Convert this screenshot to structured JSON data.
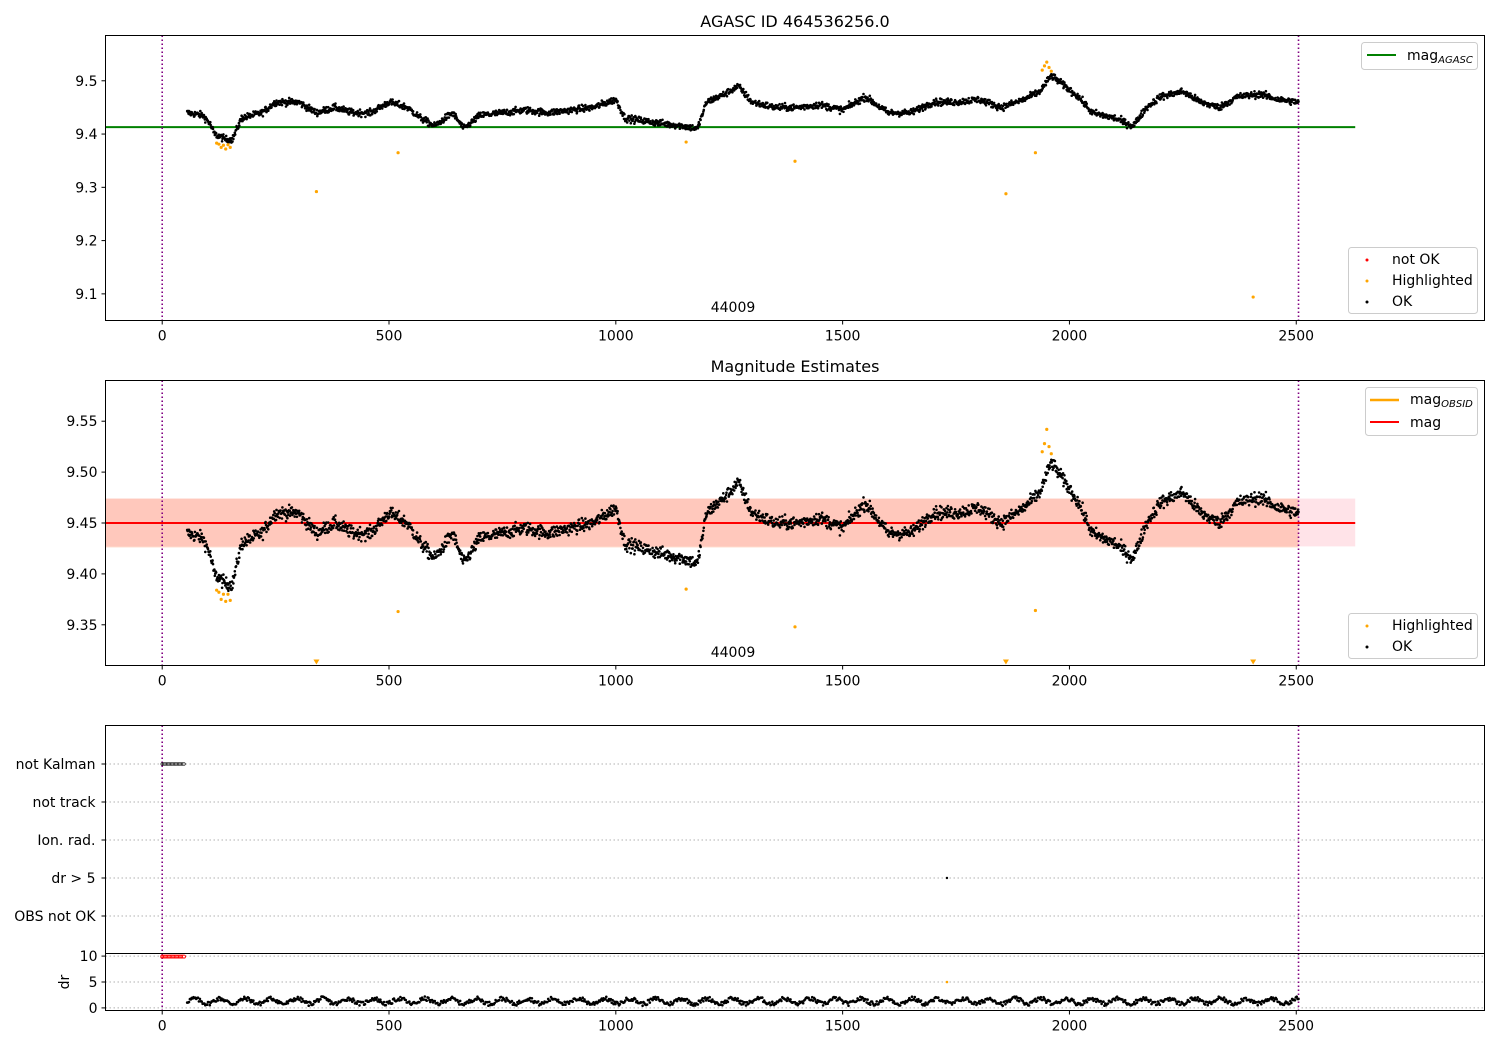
{
  "colors": {
    "ok": "#000000",
    "highlighted": "#ffa500",
    "not_ok": "#ff0000",
    "mag_agasc_line": "#008000",
    "mag_obsid_line": "#ffa500",
    "mag_line": "#ff0000",
    "band_outer": "#ffc0cb",
    "band_inner": "#ffa07a",
    "vline": "#800080",
    "gridline": "#b0b0b0"
  },
  "chart_data": [
    {
      "type": "scatter",
      "title": "AGASC ID 464536256.0",
      "xlim": [
        -125,
        2915
      ],
      "ylim": [
        9.05,
        9.585
      ],
      "xticks": [
        "0",
        "500",
        "1000",
        "1500",
        "2000",
        "2500"
      ],
      "yticks": [
        "9.1",
        "9.2",
        "9.3",
        "9.4",
        "9.5"
      ],
      "obsid_label": "44009",
      "obsid_boundaries": [
        0,
        2505
      ],
      "lines": [
        {
          "name": "mag",
          "name_sub": "AGASC",
          "y": 9.413,
          "x_range": [
            -125,
            2630
          ]
        }
      ],
      "legend_lines": [
        {
          "name": "mag",
          "name_sub": "AGASC"
        }
      ],
      "legend_points": [
        "not OK",
        "Highlighted",
        "OK"
      ],
      "series": [
        {
          "name": "OK",
          "description": "dense time series x=55..2505, y range 9.39..9.51 following the mag estimate trend",
          "count": 2450
        },
        {
          "name": "Highlighted",
          "x": [
            120,
            125,
            130,
            135,
            140,
            145,
            150,
            340,
            520,
            1155,
            1395,
            1860,
            1925,
            1940,
            1945,
            1950,
            1955,
            1960,
            2405
          ],
          "y": [
            9.383,
            9.381,
            9.375,
            9.379,
            9.372,
            9.38,
            9.375,
            9.292,
            9.365,
            9.385,
            9.349,
            9.288,
            9.365,
            9.52,
            9.528,
            9.535,
            9.525,
            9.518,
            9.094
          ]
        },
        {
          "name": "not OK",
          "x": [],
          "y": []
        }
      ]
    },
    {
      "type": "scatter",
      "title": "Magnitude Estimates",
      "xlim": [
        -125,
        2915
      ],
      "ylim": [
        9.31,
        9.59
      ],
      "xticks": [
        "0",
        "500",
        "1000",
        "1500",
        "2000",
        "2500"
      ],
      "yticks": [
        "9.35",
        "9.40",
        "9.45",
        "9.50",
        "9.55"
      ],
      "obsid_label": "44009",
      "obsid_boundaries": [
        0,
        2505
      ],
      "mag": 9.45,
      "band_outer": [
        9.427,
        9.474
      ],
      "band_inner": [
        9.426,
        9.474
      ],
      "legend_lines": [
        {
          "name": "mag",
          "name_sub": "OBSID"
        },
        {
          "name": "mag",
          "name_sub": ""
        }
      ],
      "legend_points": [
        "Highlighted",
        "OK"
      ],
      "series": [
        {
          "name": "OK",
          "description": "dense time series x=55..2505, y range 9.39..9.51",
          "count": 2450
        },
        {
          "name": "Highlighted",
          "x": [
            120,
            125,
            130,
            135,
            140,
            145,
            150,
            520,
            1155,
            1395,
            1925,
            1940,
            1945,
            1950,
            1955,
            1960
          ],
          "y": [
            9.384,
            9.382,
            9.375,
            9.38,
            9.373,
            9.38,
            9.374,
            9.363,
            9.385,
            9.348,
            9.364,
            9.52,
            9.528,
            9.542,
            9.525,
            9.518
          ]
        },
        {
          "name": "Below range",
          "x": [
            340,
            1860,
            2405
          ],
          "y": [
            9.31,
            9.31,
            9.31
          ]
        }
      ]
    },
    {
      "type": "scatter",
      "title": "",
      "xlim": [
        -125,
        2915
      ],
      "categories": [
        "not Kalman",
        "not track",
        "Ion. rad.",
        "dr > 5",
        "OBS not OK"
      ],
      "flags": [
        {
          "category": "not Kalman",
          "x_range": [
            0,
            50
          ]
        },
        {
          "category": "dr > 5",
          "x": [
            1730
          ]
        }
      ],
      "obsid_boundaries": [
        0,
        2505
      ]
    },
    {
      "type": "scatter",
      "title": "",
      "xlim": [
        -125,
        2915
      ],
      "ylim": [
        -0.5,
        10.5
      ],
      "ylabel": "dr",
      "xticks": [
        "0",
        "500",
        "1000",
        "1500",
        "2000",
        "2500"
      ],
      "yticks": [
        "0",
        "5",
        "10"
      ],
      "series": [
        {
          "name": "dr",
          "description": "dense series x=55..2505, y range 0..3"
        },
        {
          "name": "dr large",
          "x_range": [
            0,
            50
          ],
          "y": 9.9
        },
        {
          "name": "dr outlier",
          "x": [
            1730
          ],
          "y": [
            5
          ]
        }
      ],
      "obsid_boundaries": [
        0,
        2505
      ]
    }
  ]
}
